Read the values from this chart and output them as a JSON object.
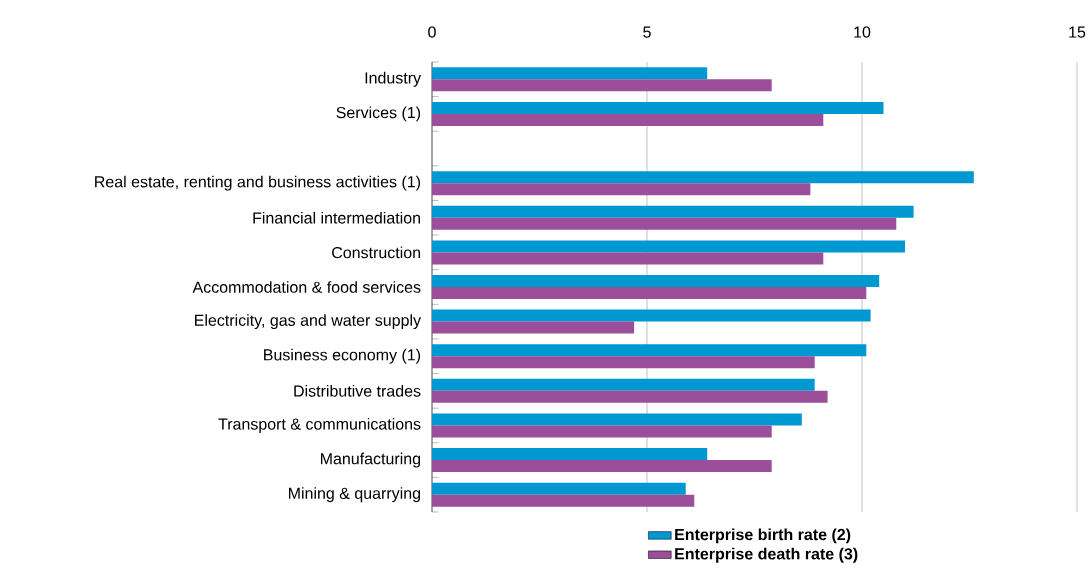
{
  "chart_data": {
    "type": "bar",
    "orientation": "horizontal",
    "categories": [
      "Industry",
      "Services (1)",
      null,
      "Real estate, renting and business activities (1)",
      "Financial intermediation",
      "Construction",
      "Accommodation & food services",
      "Electricity, gas and water supply",
      "Business economy (1)",
      "Distributive trades",
      "Transport & communications",
      "Manufacturing",
      "Mining & quarrying"
    ],
    "series": [
      {
        "name": "Enterprise birth rate (2)",
        "color": "#0098d1",
        "values": [
          6.4,
          10.5,
          null,
          12.6,
          11.2,
          11.0,
          10.4,
          10.2,
          10.1,
          8.9,
          8.6,
          6.4,
          5.9
        ]
      },
      {
        "name": "Enterprise death rate (3)",
        "color": "#9b4f9b",
        "values": [
          7.9,
          9.1,
          null,
          8.8,
          10.8,
          9.1,
          10.1,
          4.7,
          8.9,
          9.2,
          7.9,
          7.9,
          6.1
        ]
      }
    ],
    "xlim": [
      0,
      15
    ],
    "xticks": [
      0,
      5,
      10,
      15
    ],
    "grid": "x",
    "legend": "bottom"
  }
}
